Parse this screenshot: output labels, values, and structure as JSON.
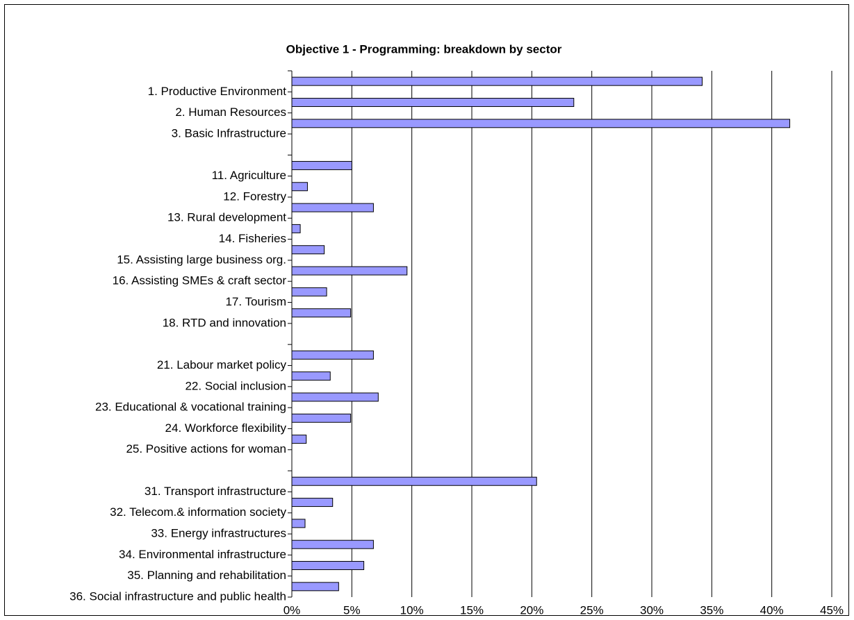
{
  "chart_data": {
    "type": "bar",
    "orientation": "horizontal",
    "title": "Objective 1 - Programming: breakdown by sector",
    "categories": [
      "1. Productive Environment",
      "2. Human Resources",
      "3. Basic Infrastructure",
      null,
      "11. Agriculture",
      "12. Forestry",
      "13. Rural development",
      "14. Fisheries",
      "15. Assisting large business org.",
      "16. Assisting SMEs & craft sector",
      "17. Tourism",
      "18. RTD and innovation",
      null,
      "21. Labour market policy",
      "22. Social inclusion",
      "23. Educational & vocational training",
      "24. Workforce flexibility",
      "25. Positive actions for woman",
      null,
      "31. Transport infrastructure",
      "32. Telecom.& information society",
      "33. Energy infrastructures",
      "34. Environmental infrastructure",
      "35. Planning and rehabilitation",
      "36. Social infrastructure and public health"
    ],
    "values": [
      34.2,
      23.5,
      41.5,
      null,
      5.0,
      1.3,
      6.8,
      0.7,
      2.7,
      9.6,
      2.9,
      4.9,
      null,
      6.8,
      3.2,
      7.2,
      4.9,
      1.2,
      null,
      20.4,
      3.4,
      1.1,
      6.8,
      6.0,
      3.9
    ],
    "color": "#9999ff",
    "xlim": [
      0,
      45
    ],
    "xticks": [
      {
        "value": 0,
        "label": "0%"
      },
      {
        "value": 5,
        "label": "5%"
      },
      {
        "value": 10,
        "label": "10%"
      },
      {
        "value": 15,
        "label": "15%"
      },
      {
        "value": 20,
        "label": "20%"
      },
      {
        "value": 25,
        "label": "25%"
      },
      {
        "value": 30,
        "label": "30%"
      },
      {
        "value": 35,
        "label": "35%"
      },
      {
        "value": 40,
        "label": "40%"
      },
      {
        "value": 45,
        "label": "45%"
      }
    ],
    "grid": true
  }
}
